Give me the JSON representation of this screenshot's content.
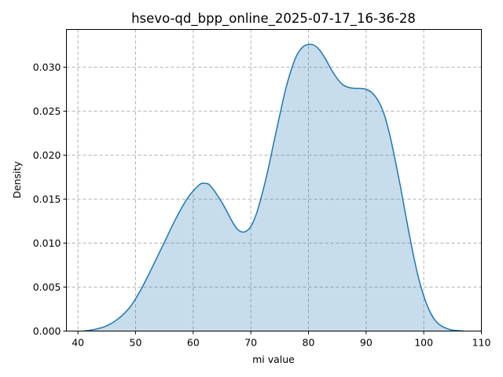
{
  "chart_data": {
    "type": "area",
    "title": "hsevo-qd_bpp_online_2025-07-17_16-36-28",
    "xlabel": "mi value",
    "ylabel": "Density",
    "xlim": [
      38,
      110
    ],
    "ylim": [
      0,
      0.0343
    ],
    "grid": true,
    "x_ticks": [
      40,
      50,
      60,
      70,
      80,
      90,
      100,
      110
    ],
    "x_tick_labels": [
      "40",
      "50",
      "60",
      "70",
      "80",
      "90",
      "100",
      "110"
    ],
    "y_ticks": [
      0,
      0.005,
      0.01,
      0.015,
      0.02,
      0.025,
      0.03
    ],
    "y_tick_labels": [
      "0.000",
      "0.005",
      "0.010",
      "0.015",
      "0.020",
      "0.025",
      "0.030"
    ],
    "color": "#1f77b4",
    "series": [
      {
        "x": [
          41,
          43,
          45,
          47,
          49,
          51,
          53,
          55,
          57,
          59,
          61,
          62,
          63,
          65,
          67,
          68,
          69,
          70,
          71,
          72,
          73,
          74,
          75,
          76,
          77,
          78,
          79,
          80,
          81,
          82,
          83,
          84,
          85,
          86,
          87,
          88,
          89,
          90,
          91,
          92,
          93,
          94,
          95,
          96,
          97,
          98,
          99,
          100,
          101,
          102,
          103,
          104,
          105,
          107
        ],
        "y": [
          0.0,
          0.0002,
          0.0006,
          0.0014,
          0.0027,
          0.0048,
          0.0074,
          0.0101,
          0.0128,
          0.0151,
          0.0166,
          0.0168,
          0.0165,
          0.0146,
          0.0122,
          0.0114,
          0.0113,
          0.0119,
          0.0134,
          0.0157,
          0.0184,
          0.0215,
          0.0245,
          0.0274,
          0.0297,
          0.0314,
          0.0323,
          0.0326,
          0.0325,
          0.0319,
          0.0309,
          0.0297,
          0.0287,
          0.028,
          0.0277,
          0.0276,
          0.0276,
          0.0275,
          0.0271,
          0.0263,
          0.0249,
          0.0226,
          0.0196,
          0.0163,
          0.0127,
          0.0093,
          0.0063,
          0.004,
          0.0023,
          0.0012,
          0.0006,
          0.0003,
          0.0001,
          0.0
        ]
      }
    ]
  }
}
